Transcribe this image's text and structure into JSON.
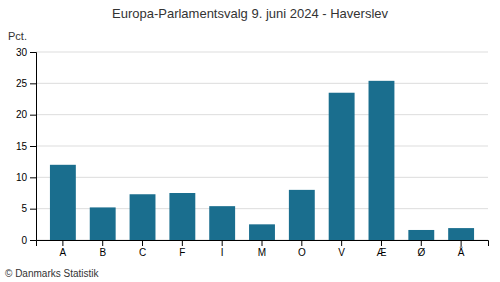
{
  "chart_data": {
    "type": "bar",
    "title": "Europa-Parlamentsvalg 9. juni 2024 - Haverslev",
    "ylabel": "Pct.",
    "annotations": [
      "© Danmarks Statistik"
    ],
    "categories": [
      "A",
      "B",
      "C",
      "F",
      "I",
      "M",
      "O",
      "V",
      "Æ",
      "Ø",
      "Å"
    ],
    "values": [
      12.0,
      5.2,
      7.3,
      7.5,
      5.4,
      2.5,
      8.0,
      23.5,
      25.4,
      1.6,
      1.9
    ],
    "color": "#1a6e8e",
    "ylim": [
      0,
      30
    ],
    "yticks": [
      0,
      5,
      10,
      15,
      20,
      25,
      30
    ],
    "grid": true
  }
}
